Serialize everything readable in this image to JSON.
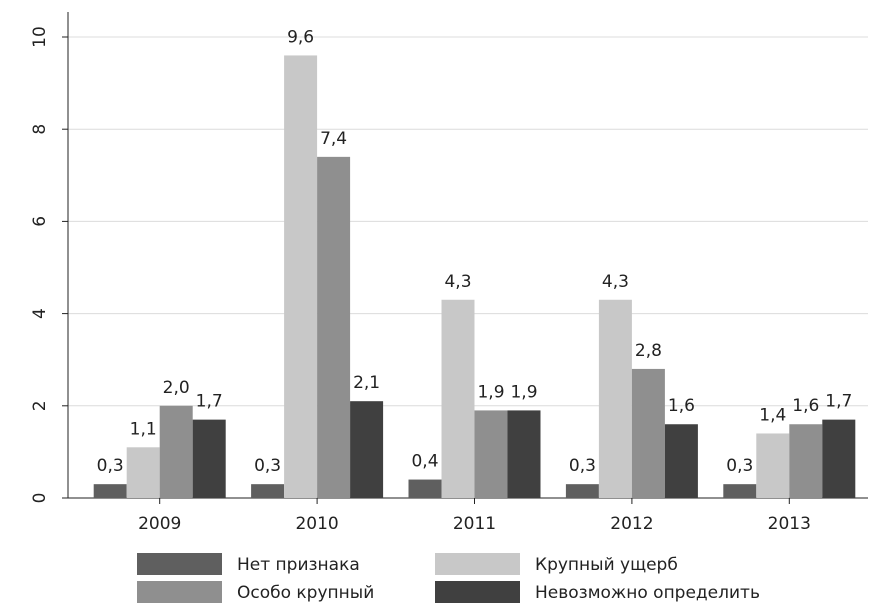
{
  "chart_data": {
    "type": "bar",
    "categories": [
      "2009",
      "2010",
      "2011",
      "2012",
      "2013"
    ],
    "series": [
      {
        "name": "Нет признака",
        "color": "#5f5f5f",
        "values": [
          0.3,
          0.3,
          0.4,
          0.3,
          0.3
        ],
        "value_labels": [
          "0,3",
          "0,3",
          "0,4",
          "0,3",
          "0,3"
        ]
      },
      {
        "name": "Крупный ущерб",
        "color": "#c8c8c8",
        "values": [
          1.1,
          9.6,
          4.3,
          4.3,
          1.4
        ],
        "value_labels": [
          "1,1",
          "9,6",
          "4,3",
          "4,3",
          "1,4"
        ]
      },
      {
        "name": "Особо крупный",
        "color": "#8f8f8f",
        "values": [
          2.0,
          7.4,
          1.9,
          2.8,
          1.6
        ],
        "value_labels": [
          "2,0",
          "7,4",
          "1,9",
          "2,8",
          "1,6"
        ]
      },
      {
        "name": "Невозможно определить",
        "color": "#404040",
        "values": [
          1.7,
          2.1,
          1.9,
          1.6,
          1.7
        ],
        "value_labels": [
          "1,7",
          "2,1",
          "1,9",
          "1,6",
          "1,7"
        ]
      }
    ],
    "ylim": [
      0,
      10
    ],
    "yticks": [
      0,
      2,
      4,
      6,
      8,
      10
    ],
    "grid": true
  }
}
